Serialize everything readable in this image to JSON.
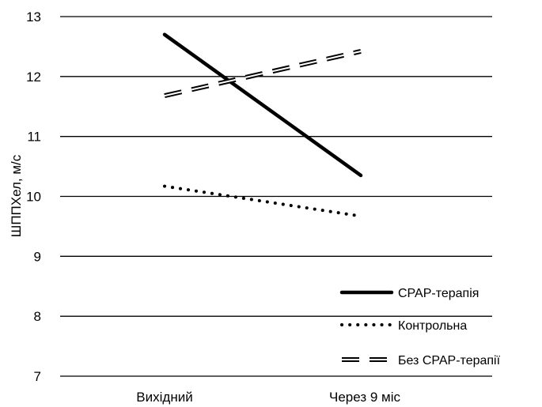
{
  "chart_data": {
    "type": "line",
    "title": "",
    "xlabel": "",
    "ylabel": "ШППХел, м/с",
    "categories": [
      "Вихідний",
      "Через 9 міс"
    ],
    "ylim": [
      7,
      13
    ],
    "yticks": [
      7,
      8,
      9,
      10,
      11,
      12,
      13
    ],
    "grid": true,
    "legend_position": "bottom-right",
    "series": [
      {
        "name": "CPAP-терапія",
        "values": [
          12.7,
          10.35
        ],
        "style": "solid",
        "color": "#000000"
      },
      {
        "name": "Контрольна",
        "values": [
          10.17,
          9.67
        ],
        "style": "dotted",
        "color": "#000000"
      },
      {
        "name": "Без CPAP-терапії",
        "values": [
          11.68,
          12.42
        ],
        "style": "dashed",
        "color": "#000000"
      }
    ]
  }
}
